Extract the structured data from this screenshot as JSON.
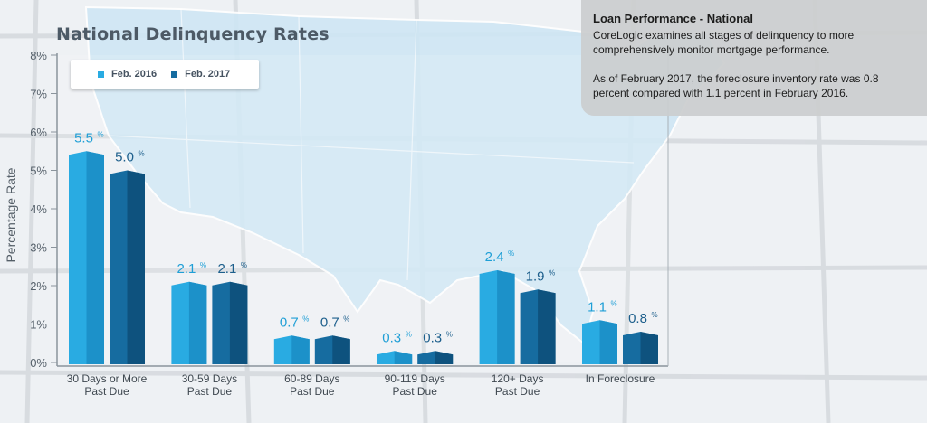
{
  "info_panel": {
    "heading": "Loan Performance - National",
    "paragraph_1": "CoreLogic examines all stages of delinquency to more comprehensively monitor mortgage performance.",
    "paragraph_2": "As of February 2017, the foreclosure inventory rate was 0.8 percent compared with 1.1 percent in February 2016."
  },
  "colors": {
    "series_2016": "#29abe2",
    "series_2016_side": "#1a8cc4",
    "series_2017": "#166ca0",
    "series_2017_side": "#0d4e78",
    "label_2016": "#1f9fd6",
    "label_2017": "#1d5f8c"
  },
  "chart_data": {
    "type": "bar",
    "title": "National Delinquency Rates",
    "ylabel": "Percentage Rate",
    "xlabel": "",
    "ylim": [
      0,
      8
    ],
    "yticks": [
      "0%",
      "1%",
      "2%",
      "3%",
      "4%",
      "5%",
      "6%",
      "7%",
      "8%"
    ],
    "grid": false,
    "legend_position": "top-left",
    "categories": [
      [
        "30 Days or More",
        "Past Due"
      ],
      [
        "30-59 Days",
        "Past Due"
      ],
      [
        "60-89 Days",
        "Past Due"
      ],
      [
        "90-119 Days",
        "Past Due"
      ],
      [
        "120+ Days",
        "Past Due"
      ],
      [
        "In Foreclosure"
      ]
    ],
    "series": [
      {
        "name": "Feb. 2016",
        "values": [
          5.5,
          2.1,
          0.7,
          0.3,
          2.4,
          1.1
        ],
        "labels": [
          "5.5",
          "2.1",
          "0.7",
          "0.3",
          "2.4",
          "1.1"
        ]
      },
      {
        "name": "Feb. 2017",
        "values": [
          5.0,
          2.1,
          0.7,
          0.3,
          1.9,
          0.8
        ],
        "labels": [
          "5.0",
          "2.1",
          "0.7",
          "0.3",
          "1.9",
          "0.8"
        ]
      }
    ],
    "value_suffix": "%"
  }
}
